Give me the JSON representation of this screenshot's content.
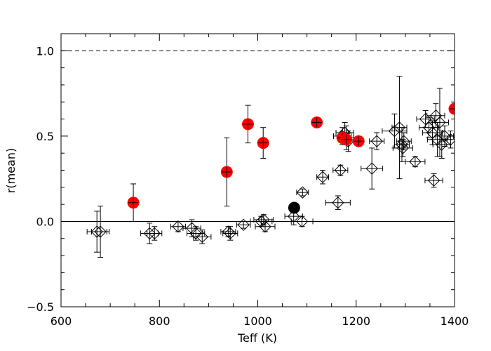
{
  "chart_data": {
    "type": "scatter",
    "title": "",
    "xlabel": "Teff (K)",
    "ylabel": "r(mean)",
    "xlim": [
      600,
      1400
    ],
    "ylim": [
      -0.5,
      1.1
    ],
    "xticks": [
      600,
      800,
      1000,
      1200,
      1400
    ],
    "xtick_labels": [
      "600",
      "800",
      "1000",
      "1200",
      "1400"
    ],
    "yticks": [
      -0.5,
      0.0,
      0.5,
      1.0
    ],
    "ytick_labels": [
      "−0.5",
      "0.0",
      "0.5",
      "1.0"
    ],
    "reference_lines": [
      {
        "y": 1.0,
        "style": "dashed"
      },
      {
        "y": 0.0,
        "style": "solid"
      }
    ],
    "colors": {
      "red": "#ff0000",
      "black": "#000000",
      "axis": "#000000"
    },
    "series": [
      {
        "name": "open diamonds",
        "marker": "diamond-open",
        "color": "#000000",
        "points": [
          {
            "x": 673,
            "y": -0.06,
            "xerr": 20,
            "yerr": 0.12
          },
          {
            "x": 680,
            "y": -0.06,
            "xerr": 18,
            "yerr": 0.15
          },
          {
            "x": 780,
            "y": -0.07,
            "xerr": 18,
            "yerr": 0.06
          },
          {
            "x": 790,
            "y": -0.07,
            "xerr": 15,
            "yerr": 0.04
          },
          {
            "x": 838,
            "y": -0.03,
            "xerr": 15,
            "yerr": 0.03
          },
          {
            "x": 866,
            "y": -0.04,
            "xerr": 18,
            "yerr": 0.05
          },
          {
            "x": 874,
            "y": -0.07,
            "xerr": 18,
            "yerr": 0.04
          },
          {
            "x": 887,
            "y": -0.09,
            "xerr": 18,
            "yerr": 0.04
          },
          {
            "x": 940,
            "y": -0.06,
            "xerr": 15,
            "yerr": 0.03
          },
          {
            "x": 944,
            "y": -0.07,
            "xerr": 15,
            "yerr": 0.04
          },
          {
            "x": 971,
            "y": -0.02,
            "xerr": 14,
            "yerr": 0.02
          },
          {
            "x": 1007,
            "y": 0.0,
            "xerr": 22,
            "yerr": 0.03
          },
          {
            "x": 1012,
            "y": 0.01,
            "xerr": 20,
            "yerr": 0.03
          },
          {
            "x": 1015,
            "y": -0.03,
            "xerr": 20,
            "yerr": 0.03
          },
          {
            "x": 1073,
            "y": 0.03,
            "xerr": 18,
            "yerr": 0.05
          },
          {
            "x": 1090,
            "y": 0.0,
            "xerr": 22,
            "yerr": 0.03
          },
          {
            "x": 1091,
            "y": 0.17,
            "xerr": 12,
            "yerr": 0.02
          },
          {
            "x": 1132,
            "y": 0.26,
            "xerr": 12,
            "yerr": 0.04
          },
          {
            "x": 1163,
            "y": 0.11,
            "xerr": 25,
            "yerr": 0.04
          },
          {
            "x": 1168,
            "y": 0.3,
            "xerr": 15,
            "yerr": 0.03
          },
          {
            "x": 1172,
            "y": 0.5,
            "xerr": 18,
            "yerr": 0.05
          },
          {
            "x": 1177,
            "y": 0.52,
            "xerr": 18,
            "yerr": 0.06
          },
          {
            "x": 1180,
            "y": 0.49,
            "xerr": 15,
            "yerr": 0.07
          },
          {
            "x": 1184,
            "y": 0.47,
            "xerr": 15,
            "yerr": 0.06
          },
          {
            "x": 1232,
            "y": 0.31,
            "xerr": 22,
            "yerr": 0.12
          },
          {
            "x": 1242,
            "y": 0.47,
            "xerr": 15,
            "yerr": 0.05
          },
          {
            "x": 1278,
            "y": 0.53,
            "xerr": 25,
            "yerr": 0.1
          },
          {
            "x": 1288,
            "y": 0.55,
            "xerr": 15,
            "yerr": 0.3
          },
          {
            "x": 1293,
            "y": 0.45,
            "xerr": 15,
            "yerr": 0.1
          },
          {
            "x": 1295,
            "y": 0.43,
            "xerr": 20,
            "yerr": 0.05
          },
          {
            "x": 1297,
            "y": 0.47,
            "xerr": 15,
            "yerr": 0.05
          },
          {
            "x": 1320,
            "y": 0.35,
            "xerr": 20,
            "yerr": 0.03
          },
          {
            "x": 1341,
            "y": 0.6,
            "xerr": 18,
            "yerr": 0.05
          },
          {
            "x": 1348,
            "y": 0.55,
            "xerr": 20,
            "yerr": 0.06
          },
          {
            "x": 1355,
            "y": 0.52,
            "xerr": 20,
            "yerr": 0.07
          },
          {
            "x": 1358,
            "y": 0.24,
            "xerr": 18,
            "yerr": 0.04
          },
          {
            "x": 1362,
            "y": 0.62,
            "xerr": 18,
            "yerr": 0.07
          },
          {
            "x": 1365,
            "y": 0.48,
            "xerr": 20,
            "yerr": 0.1
          },
          {
            "x": 1370,
            "y": 0.58,
            "xerr": 18,
            "yerr": 0.2
          },
          {
            "x": 1374,
            "y": 0.45,
            "xerr": 18,
            "yerr": 0.08
          },
          {
            "x": 1380,
            "y": 0.5,
            "xerr": 18,
            "yerr": 0.06
          },
          {
            "x": 1392,
            "y": 0.48,
            "xerr": 15,
            "yerr": 0.05
          }
        ]
      },
      {
        "name": "red filled circles",
        "marker": "circle-filled",
        "color": "#ff0000",
        "points": [
          {
            "x": 747,
            "y": 0.11,
            "xerr": 0,
            "yerr": 0.11
          },
          {
            "x": 937,
            "y": 0.29,
            "xerr": 0,
            "yerr": 0.2
          },
          {
            "x": 980,
            "y": 0.57,
            "xerr": 0,
            "yerr": 0.11
          },
          {
            "x": 1011,
            "y": 0.46,
            "xerr": 0,
            "yerr": 0.09
          },
          {
            "x": 1120,
            "y": 0.58,
            "xerr": 0,
            "yerr": 0.02
          },
          {
            "x": 1172,
            "y": 0.49,
            "xerr": 0,
            "yerr": 0.02
          },
          {
            "x": 1180,
            "y": 0.48,
            "xerr": 0,
            "yerr": 0.02
          },
          {
            "x": 1205,
            "y": 0.47,
            "xerr": 0,
            "yerr": 0.02
          },
          {
            "x": 1400,
            "y": 0.66,
            "xerr": 0,
            "yerr": 0.02
          }
        ]
      },
      {
        "name": "black filled circle",
        "marker": "circle-filled",
        "color": "#000000",
        "points": [
          {
            "x": 1074,
            "y": 0.08,
            "xerr": 0,
            "yerr": 0.01
          }
        ]
      }
    ]
  }
}
